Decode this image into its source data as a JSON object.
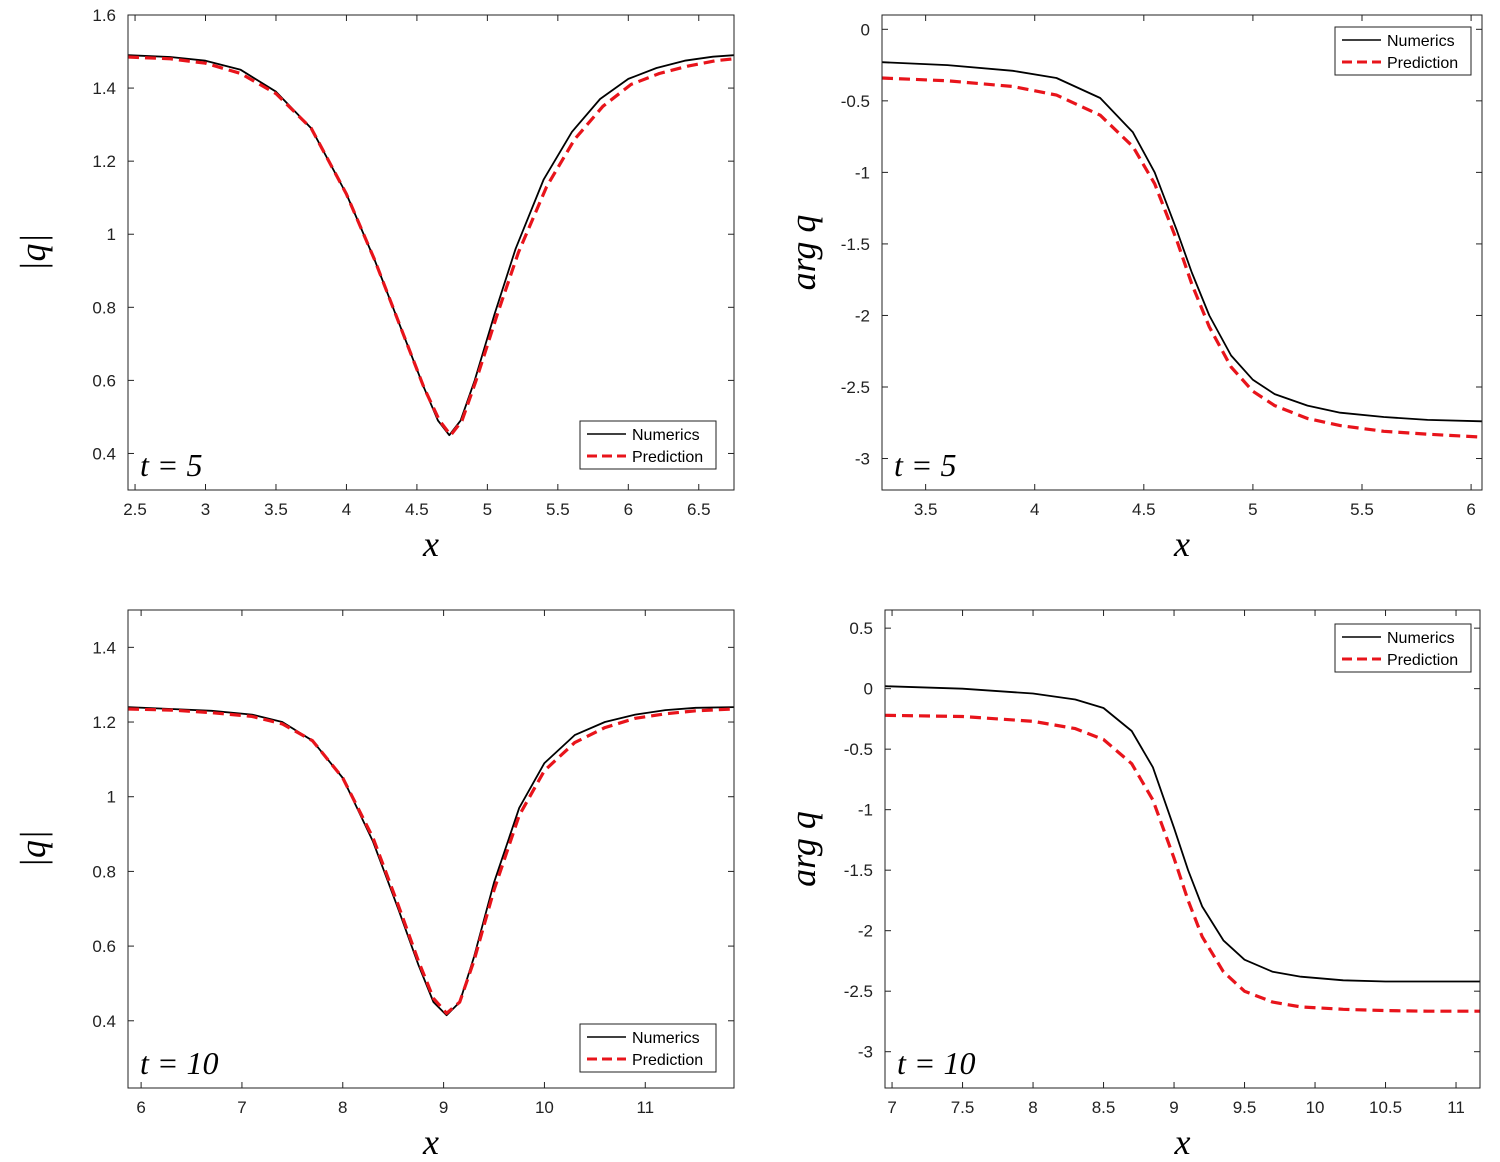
{
  "chart_data": [
    {
      "type": "line",
      "xlabel": "x",
      "ylabel": "|q|",
      "annotation": "t = 5",
      "xlim": [
        2.45,
        6.75
      ],
      "ylim": [
        0.3,
        1.6
      ],
      "xticks": [
        2.5,
        3,
        3.5,
        4,
        4.5,
        5,
        5.5,
        6,
        6.5
      ],
      "xtick_labels": [
        "2.5",
        "3",
        "3.5",
        "4",
        "4.5",
        "5",
        "5.5",
        "6",
        "6.5"
      ],
      "yticks": [
        0.4,
        0.6,
        0.8,
        1,
        1.2,
        1.4,
        1.6
      ],
      "ytick_labels": [
        "0.4",
        "0.6",
        "0.8",
        "1",
        "1.2",
        "1.4",
        "1.6"
      ],
      "legend_position": "bottom-right",
      "series": [
        {
          "name": "Numerics",
          "color": "#000000",
          "style": "solid",
          "x": [
            2.45,
            2.75,
            3.0,
            3.25,
            3.5,
            3.75,
            4.0,
            4.2,
            4.4,
            4.55,
            4.65,
            4.73,
            4.81,
            4.91,
            5.05,
            5.2,
            5.4,
            5.6,
            5.8,
            6.0,
            6.2,
            6.4,
            6.6,
            6.75
          ],
          "y": [
            1.49,
            1.485,
            1.475,
            1.45,
            1.39,
            1.29,
            1.11,
            0.93,
            0.73,
            0.58,
            0.49,
            0.45,
            0.49,
            0.6,
            0.78,
            0.96,
            1.15,
            1.28,
            1.37,
            1.425,
            1.455,
            1.475,
            1.486,
            1.49
          ]
        },
        {
          "name": "Prediction",
          "color": "#e8141b",
          "style": "dashed",
          "x": [
            2.45,
            2.75,
            3.0,
            3.25,
            3.5,
            3.75,
            4.0,
            4.2,
            4.4,
            4.55,
            4.66,
            4.74,
            4.82,
            4.92,
            5.07,
            5.22,
            5.42,
            5.62,
            5.82,
            6.02,
            6.22,
            6.42,
            6.62,
            6.75
          ],
          "y": [
            1.485,
            1.48,
            1.468,
            1.44,
            1.385,
            1.29,
            1.11,
            0.93,
            0.73,
            0.58,
            0.49,
            0.45,
            0.49,
            0.6,
            0.78,
            0.95,
            1.13,
            1.26,
            1.35,
            1.41,
            1.44,
            1.46,
            1.475,
            1.48
          ]
        }
      ]
    },
    {
      "type": "line",
      "xlabel": "x",
      "ylabel": "arg q",
      "annotation": "t = 5",
      "xlim": [
        3.3,
        6.05
      ],
      "ylim": [
        -3.22,
        0.1
      ],
      "xticks": [
        3.5,
        4,
        4.5,
        5,
        5.5,
        6
      ],
      "xtick_labels": [
        "3.5",
        "4",
        "4.5",
        "5",
        "5.5",
        "6"
      ],
      "yticks": [
        0,
        -0.5,
        -1,
        -1.5,
        -2,
        -2.5,
        -3
      ],
      "ytick_labels": [
        "0",
        "-0.5",
        "-1",
        "-1.5",
        "-2",
        "-2.5",
        "-3"
      ],
      "legend_position": "top-right",
      "series": [
        {
          "name": "Numerics",
          "color": "#000000",
          "style": "solid",
          "x": [
            3.3,
            3.6,
            3.9,
            4.1,
            4.3,
            4.45,
            4.55,
            4.65,
            4.72,
            4.8,
            4.9,
            5.0,
            5.1,
            5.25,
            5.4,
            5.6,
            5.8,
            6.05
          ],
          "y": [
            -0.23,
            -0.25,
            -0.29,
            -0.34,
            -0.48,
            -0.72,
            -1.0,
            -1.4,
            -1.7,
            -2.0,
            -2.28,
            -2.45,
            -2.55,
            -2.63,
            -2.68,
            -2.71,
            -2.73,
            -2.74
          ]
        },
        {
          "name": "Prediction",
          "color": "#e8141b",
          "style": "dashed",
          "x": [
            3.3,
            3.6,
            3.9,
            4.1,
            4.3,
            4.45,
            4.55,
            4.65,
            4.72,
            4.8,
            4.9,
            5.0,
            5.1,
            5.25,
            5.4,
            5.6,
            5.8,
            6.05
          ],
          "y": [
            -0.34,
            -0.36,
            -0.4,
            -0.46,
            -0.6,
            -0.82,
            -1.08,
            -1.47,
            -1.78,
            -2.08,
            -2.36,
            -2.53,
            -2.63,
            -2.72,
            -2.77,
            -2.81,
            -2.83,
            -2.85
          ]
        }
      ]
    },
    {
      "type": "line",
      "xlabel": "x",
      "ylabel": "|q|",
      "annotation": "t = 10",
      "xlim": [
        5.87,
        11.88
      ],
      "ylim": [
        0.22,
        1.5
      ],
      "xticks": [
        6,
        7,
        8,
        9,
        10,
        11
      ],
      "xtick_labels": [
        "6",
        "7",
        "8",
        "9",
        "10",
        "11"
      ],
      "yticks": [
        0.4,
        0.6,
        0.8,
        1,
        1.2,
        1.4
      ],
      "ytick_labels": [
        "0.4",
        "0.6",
        "0.8",
        "1",
        "1.2",
        "1.4"
      ],
      "legend_position": "bottom-right",
      "series": [
        {
          "name": "Numerics",
          "color": "#000000",
          "style": "solid",
          "x": [
            5.87,
            6.3,
            6.7,
            7.1,
            7.4,
            7.7,
            8.0,
            8.3,
            8.55,
            8.75,
            8.9,
            9.03,
            9.16,
            9.3,
            9.5,
            9.75,
            10.0,
            10.3,
            10.6,
            10.9,
            11.2,
            11.5,
            11.88
          ],
          "y": [
            1.24,
            1.235,
            1.23,
            1.22,
            1.2,
            1.15,
            1.05,
            0.88,
            0.7,
            0.55,
            0.45,
            0.415,
            0.45,
            0.57,
            0.77,
            0.97,
            1.09,
            1.165,
            1.2,
            1.22,
            1.232,
            1.238,
            1.24
          ]
        },
        {
          "name": "Prediction",
          "color": "#e8141b",
          "style": "dashed",
          "x": [
            5.87,
            6.3,
            6.7,
            7.1,
            7.4,
            7.7,
            8.0,
            8.3,
            8.55,
            8.75,
            8.9,
            9.03,
            9.16,
            9.3,
            9.5,
            9.75,
            10.0,
            10.3,
            10.6,
            10.9,
            11.2,
            11.5,
            11.88
          ],
          "y": [
            1.235,
            1.232,
            1.225,
            1.215,
            1.195,
            1.15,
            1.05,
            0.89,
            0.71,
            0.56,
            0.46,
            0.42,
            0.45,
            0.56,
            0.75,
            0.95,
            1.07,
            1.145,
            1.185,
            1.21,
            1.222,
            1.23,
            1.235
          ]
        }
      ]
    },
    {
      "type": "line",
      "xlabel": "x",
      "ylabel": "arg q",
      "annotation": "t = 10",
      "xlim": [
        6.95,
        11.17
      ],
      "ylim": [
        -3.3,
        0.65
      ],
      "xticks": [
        7,
        7.5,
        8,
        8.5,
        9,
        9.5,
        10,
        10.5,
        11
      ],
      "xtick_labels": [
        "7",
        "7.5",
        "8",
        "8.5",
        "9",
        "9.5",
        "10",
        "10.5",
        "11"
      ],
      "yticks": [
        0.5,
        0,
        -0.5,
        -1,
        -1.5,
        -2,
        -2.5,
        -3
      ],
      "ytick_labels": [
        "0.5",
        "0",
        "-0.5",
        "-1",
        "-1.5",
        "-2",
        "-2.5",
        "-3"
      ],
      "legend_position": "top-right",
      "series": [
        {
          "name": "Numerics",
          "color": "#000000",
          "style": "solid",
          "x": [
            6.95,
            7.5,
            8.0,
            8.3,
            8.5,
            8.7,
            8.85,
            9.0,
            9.1,
            9.2,
            9.35,
            9.5,
            9.7,
            9.9,
            10.2,
            10.5,
            10.8,
            11.17
          ],
          "y": [
            0.02,
            0.0,
            -0.04,
            -0.09,
            -0.16,
            -0.35,
            -0.65,
            -1.15,
            -1.5,
            -1.8,
            -2.08,
            -2.24,
            -2.34,
            -2.38,
            -2.41,
            -2.42,
            -2.42,
            -2.42
          ]
        },
        {
          "name": "Prediction",
          "color": "#e8141b",
          "style": "dashed",
          "x": [
            6.95,
            7.5,
            8.0,
            8.3,
            8.5,
            8.7,
            8.85,
            9.0,
            9.1,
            9.2,
            9.35,
            9.5,
            9.7,
            9.9,
            10.2,
            10.5,
            10.8,
            11.17
          ],
          "y": [
            -0.22,
            -0.23,
            -0.27,
            -0.33,
            -0.42,
            -0.62,
            -0.92,
            -1.4,
            -1.75,
            -2.05,
            -2.34,
            -2.5,
            -2.59,
            -2.63,
            -2.65,
            -2.66,
            -2.665,
            -2.665
          ]
        }
      ]
    }
  ]
}
